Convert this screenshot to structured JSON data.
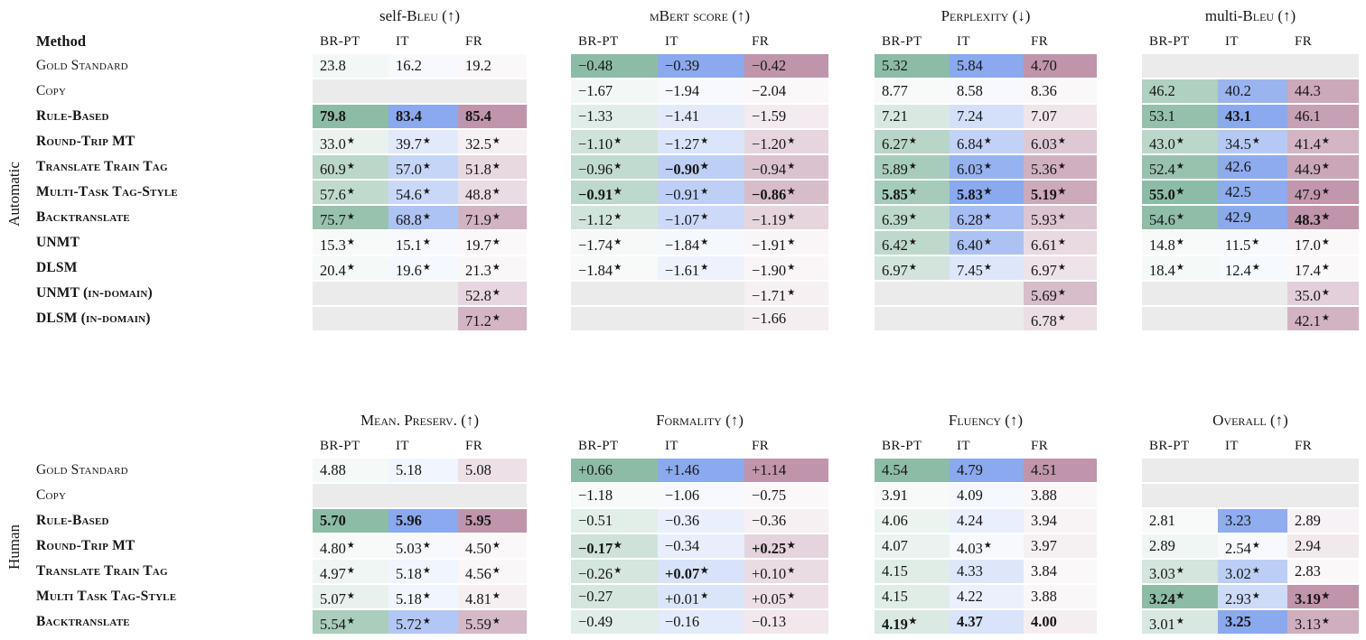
{
  "page_background": "#ffffff",
  "cell_format": "each cell is [text, flags]; flags: 's' = superscript star marker shown in table, 'b' = bold value; [] = empty gray cell",
  "columns": [
    "BR-PT",
    "IT",
    "FR"
  ],
  "column_colors": {
    "br_pt": "#8dbca6",
    "it": "#8aa9ee",
    "fr": "#c095ab",
    "empty_cell": "#ebebeb"
  },
  "significance_marker": "★",
  "sections": [
    {
      "group_label": "Automatic",
      "method_header": "Method",
      "metrics": [
        {
          "prefix": "self-",
          "name": "Bleu",
          "arrow": "↑"
        },
        {
          "prefix": "",
          "name": "mBert score",
          "arrow": "↑"
        },
        {
          "prefix": "",
          "name": "Perplexity",
          "arrow": "↓"
        },
        {
          "prefix": "multi-",
          "name": "Bleu",
          "arrow": "↑"
        }
      ],
      "rows": [
        {
          "method": "Gold Standard",
          "bold": false,
          "cells": [
            [
              [
                "23.8"
              ],
              [
                "16.2"
              ],
              [
                "19.2"
              ]
            ],
            [
              [
                "−0.48"
              ],
              [
                "−0.39"
              ],
              [
                "−0.42"
              ]
            ],
            [
              [
                "5.32"
              ],
              [
                "5.84"
              ],
              [
                "4.70"
              ]
            ],
            [
              [],
              [],
              []
            ]
          ]
        },
        {
          "method": "Copy",
          "bold": false,
          "cells": [
            [
              [],
              [],
              []
            ],
            [
              [
                "−1.67"
              ],
              [
                "−1.94"
              ],
              [
                "−2.04"
              ]
            ],
            [
              [
                "8.77"
              ],
              [
                "8.58"
              ],
              [
                "8.36"
              ]
            ],
            [
              [
                "46.2"
              ],
              [
                "40.2"
              ],
              [
                "44.3"
              ]
            ]
          ]
        },
        {
          "method": "Rule-Based",
          "bold": true,
          "cells": [
            [
              [
                "79.8",
                "b"
              ],
              [
                "83.4",
                "b"
              ],
              [
                "85.4",
                "b"
              ]
            ],
            [
              [
                "−1.33"
              ],
              [
                "−1.41"
              ],
              [
                "−1.59"
              ]
            ],
            [
              [
                "7.21"
              ],
              [
                "7.24"
              ],
              [
                "7.07"
              ]
            ],
            [
              [
                "53.1"
              ],
              [
                "43.1",
                "b"
              ],
              [
                "46.1"
              ]
            ]
          ]
        },
        {
          "method": "Round-Trip MT",
          "bold": true,
          "cells": [
            [
              [
                "33.0",
                "s"
              ],
              [
                "39.7",
                "s"
              ],
              [
                "32.5",
                "s"
              ]
            ],
            [
              [
                "−1.10",
                "s"
              ],
              [
                "−1.27",
                "s"
              ],
              [
                "−1.20",
                "s"
              ]
            ],
            [
              [
                "6.27",
                "s"
              ],
              [
                "6.84",
                "s"
              ],
              [
                "6.03",
                "s"
              ]
            ],
            [
              [
                "43.0",
                "s"
              ],
              [
                "34.5",
                "s"
              ],
              [
                "41.4",
                "s"
              ]
            ]
          ]
        },
        {
          "method": "Translate Train Tag",
          "bold": true,
          "cells": [
            [
              [
                "60.9",
                "s"
              ],
              [
                "57.0",
                "s"
              ],
              [
                "51.8",
                "s"
              ]
            ],
            [
              [
                "−0.96",
                "s"
              ],
              [
                "−0.90",
                "sb"
              ],
              [
                "−0.94",
                "s"
              ]
            ],
            [
              [
                "5.89",
                "s"
              ],
              [
                "6.03",
                "s"
              ],
              [
                "5.36",
                "s"
              ]
            ],
            [
              [
                "52.4",
                "s"
              ],
              [
                "42.6"
              ],
              [
                "44.9",
                "s"
              ]
            ]
          ]
        },
        {
          "method": "Multi-Task Tag-Style",
          "bold": true,
          "cells": [
            [
              [
                "57.6",
                "s"
              ],
              [
                "54.6",
                "s"
              ],
              [
                "48.8",
                "s"
              ]
            ],
            [
              [
                "−0.91",
                "sb"
              ],
              [
                "−0.91",
                "s"
              ],
              [
                "−0.86",
                "sb"
              ]
            ],
            [
              [
                "5.85",
                "sb"
              ],
              [
                "5.83",
                "sb"
              ],
              [
                "5.19",
                "sb"
              ]
            ],
            [
              [
                "55.0",
                "sb"
              ],
              [
                "42.5"
              ],
              [
                "47.9",
                "s"
              ]
            ]
          ]
        },
        {
          "method": "Backtranslate",
          "bold": true,
          "cells": [
            [
              [
                "75.7",
                "s"
              ],
              [
                "68.8",
                "s"
              ],
              [
                "71.9",
                "s"
              ]
            ],
            [
              [
                "−1.12",
                "s"
              ],
              [
                "−1.07",
                "s"
              ],
              [
                "−1.19",
                "s"
              ]
            ],
            [
              [
                "6.39",
                "s"
              ],
              [
                "6.28",
                "s"
              ],
              [
                "5.93",
                "s"
              ]
            ],
            [
              [
                "54.6",
                "s"
              ],
              [
                "42.9"
              ],
              [
                "48.3",
                "sb"
              ]
            ]
          ]
        },
        {
          "method": "UNMT",
          "bold": true,
          "cells": [
            [
              [
                "15.3",
                "s"
              ],
              [
                "15.1",
                "s"
              ],
              [
                "19.7",
                "s"
              ]
            ],
            [
              [
                "−1.74",
                "s"
              ],
              [
                "−1.84",
                "s"
              ],
              [
                "−1.91",
                "s"
              ]
            ],
            [
              [
                "6.42",
                "s"
              ],
              [
                "6.40",
                "s"
              ],
              [
                "6.61",
                "s"
              ]
            ],
            [
              [
                "14.8",
                "s"
              ],
              [
                "11.5",
                "s"
              ],
              [
                "17.0",
                "s"
              ]
            ]
          ]
        },
        {
          "method": "DLSM",
          "bold": true,
          "cells": [
            [
              [
                "20.4",
                "s"
              ],
              [
                "19.6",
                "s"
              ],
              [
                "21.3",
                "s"
              ]
            ],
            [
              [
                "−1.84",
                "s"
              ],
              [
                "−1.61",
                "s"
              ],
              [
                "−1.90",
                "s"
              ]
            ],
            [
              [
                "6.97",
                "s"
              ],
              [
                "7.45",
                "s"
              ],
              [
                "6.97",
                "s"
              ]
            ],
            [
              [
                "18.4",
                "s"
              ],
              [
                "12.4",
                "s"
              ],
              [
                "17.4",
                "s"
              ]
            ]
          ]
        },
        {
          "method": "UNMT (in-domain)",
          "bold": true,
          "cells": [
            [
              [],
              [],
              [
                "52.8",
                "s"
              ]
            ],
            [
              [],
              [],
              [
                "−1.71",
                "s"
              ]
            ],
            [
              [],
              [],
              [
                "5.69",
                "s"
              ]
            ],
            [
              [],
              [],
              [
                "35.0",
                "s"
              ]
            ]
          ]
        },
        {
          "method": "DLSM (in-domain)",
          "bold": true,
          "cells": [
            [
              [],
              [],
              [
                "71.2",
                "s"
              ]
            ],
            [
              [],
              [],
              [
                "−1.66"
              ]
            ],
            [
              [],
              [],
              [
                "6.78",
                "s"
              ]
            ],
            [
              [],
              [],
              [
                "42.1",
                "s"
              ]
            ]
          ]
        }
      ]
    },
    {
      "group_label": "Human",
      "method_header": "",
      "metrics": [
        {
          "prefix": "",
          "name": "Mean. Preserv.",
          "arrow": "↑"
        },
        {
          "prefix": "",
          "name": "Formality",
          "arrow": "↑"
        },
        {
          "prefix": "",
          "name": "Fluency",
          "arrow": "↑"
        },
        {
          "prefix": "",
          "name": "Overall",
          "arrow": "↑"
        }
      ],
      "rows": [
        {
          "method": "Gold Standard",
          "bold": false,
          "cells": [
            [
              [
                "4.88"
              ],
              [
                "5.18"
              ],
              [
                "5.08"
              ]
            ],
            [
              [
                "+0.66"
              ],
              [
                "+1.46"
              ],
              [
                "+1.14"
              ]
            ],
            [
              [
                "4.54"
              ],
              [
                "4.79"
              ],
              [
                "4.51"
              ]
            ],
            [
              [],
              [],
              []
            ]
          ]
        },
        {
          "method": "Copy",
          "bold": false,
          "cells": [
            [
              [],
              [],
              []
            ],
            [
              [
                "−1.18"
              ],
              [
                "−1.06"
              ],
              [
                "−0.75"
              ]
            ],
            [
              [
                "3.91"
              ],
              [
                "4.09"
              ],
              [
                "3.88"
              ]
            ],
            [
              [],
              [],
              []
            ]
          ]
        },
        {
          "method": "Rule-Based",
          "bold": true,
          "cells": [
            [
              [
                "5.70",
                "b"
              ],
              [
                "5.96",
                "b"
              ],
              [
                "5.95",
                "b"
              ]
            ],
            [
              [
                "−0.51"
              ],
              [
                "−0.36"
              ],
              [
                "−0.36"
              ]
            ],
            [
              [
                "4.06"
              ],
              [
                "4.24"
              ],
              [
                "3.94"
              ]
            ],
            [
              [
                "2.81"
              ],
              [
                "3.23"
              ],
              [
                "2.89"
              ]
            ]
          ]
        },
        {
          "method": "Round-Trip MT",
          "bold": true,
          "cells": [
            [
              [
                "4.80",
                "s"
              ],
              [
                "5.03",
                "s"
              ],
              [
                "4.50",
                "s"
              ]
            ],
            [
              [
                "−0.17",
                "sb"
              ],
              [
                "−0.34"
              ],
              [
                "+0.25",
                "sb"
              ]
            ],
            [
              [
                "4.07"
              ],
              [
                "4.03",
                "s"
              ],
              [
                "3.97"
              ]
            ],
            [
              [
                "2.89"
              ],
              [
                "2.54",
                "s"
              ],
              [
                "2.94"
              ]
            ]
          ]
        },
        {
          "method": "Translate Train Tag",
          "bold": true,
          "cells": [
            [
              [
                "4.97",
                "s"
              ],
              [
                "5.18",
                "s"
              ],
              [
                "4.56",
                "s"
              ]
            ],
            [
              [
                "−0.26",
                "s"
              ],
              [
                "+0.07",
                "sb"
              ],
              [
                "+0.10",
                "s"
              ]
            ],
            [
              [
                "4.15"
              ],
              [
                "4.33"
              ],
              [
                "3.84"
              ]
            ],
            [
              [
                "3.03",
                "s"
              ],
              [
                "3.02",
                "s"
              ],
              [
                "2.83"
              ]
            ]
          ]
        },
        {
          "method": "Multi Task Tag-Style",
          "bold": true,
          "cells": [
            [
              [
                "5.07",
                "s"
              ],
              [
                "5.18",
                "s"
              ],
              [
                "4.81",
                "s"
              ]
            ],
            [
              [
                "−0.27"
              ],
              [
                "+0.01",
                "s"
              ],
              [
                "+0.05",
                "s"
              ]
            ],
            [
              [
                "4.15"
              ],
              [
                "4.22"
              ],
              [
                "3.88"
              ]
            ],
            [
              [
                "3.24",
                "sb"
              ],
              [
                "2.93",
                "s"
              ],
              [
                "3.19",
                "sb"
              ]
            ]
          ]
        },
        {
          "method": "Backtranslate",
          "bold": true,
          "cells": [
            [
              [
                "5.54",
                "s"
              ],
              [
                "5.72",
                "s"
              ],
              [
                "5.59",
                "s"
              ]
            ],
            [
              [
                "−0.49"
              ],
              [
                "−0.16"
              ],
              [
                "−0.13"
              ]
            ],
            [
              [
                "4.19",
                "sb"
              ],
              [
                "4.37",
                "b"
              ],
              [
                "4.00",
                "b"
              ]
            ],
            [
              [
                "3.01",
                "s"
              ],
              [
                "3.25",
                "b"
              ],
              [
                "3.13",
                "s"
              ]
            ]
          ]
        }
      ]
    }
  ]
}
